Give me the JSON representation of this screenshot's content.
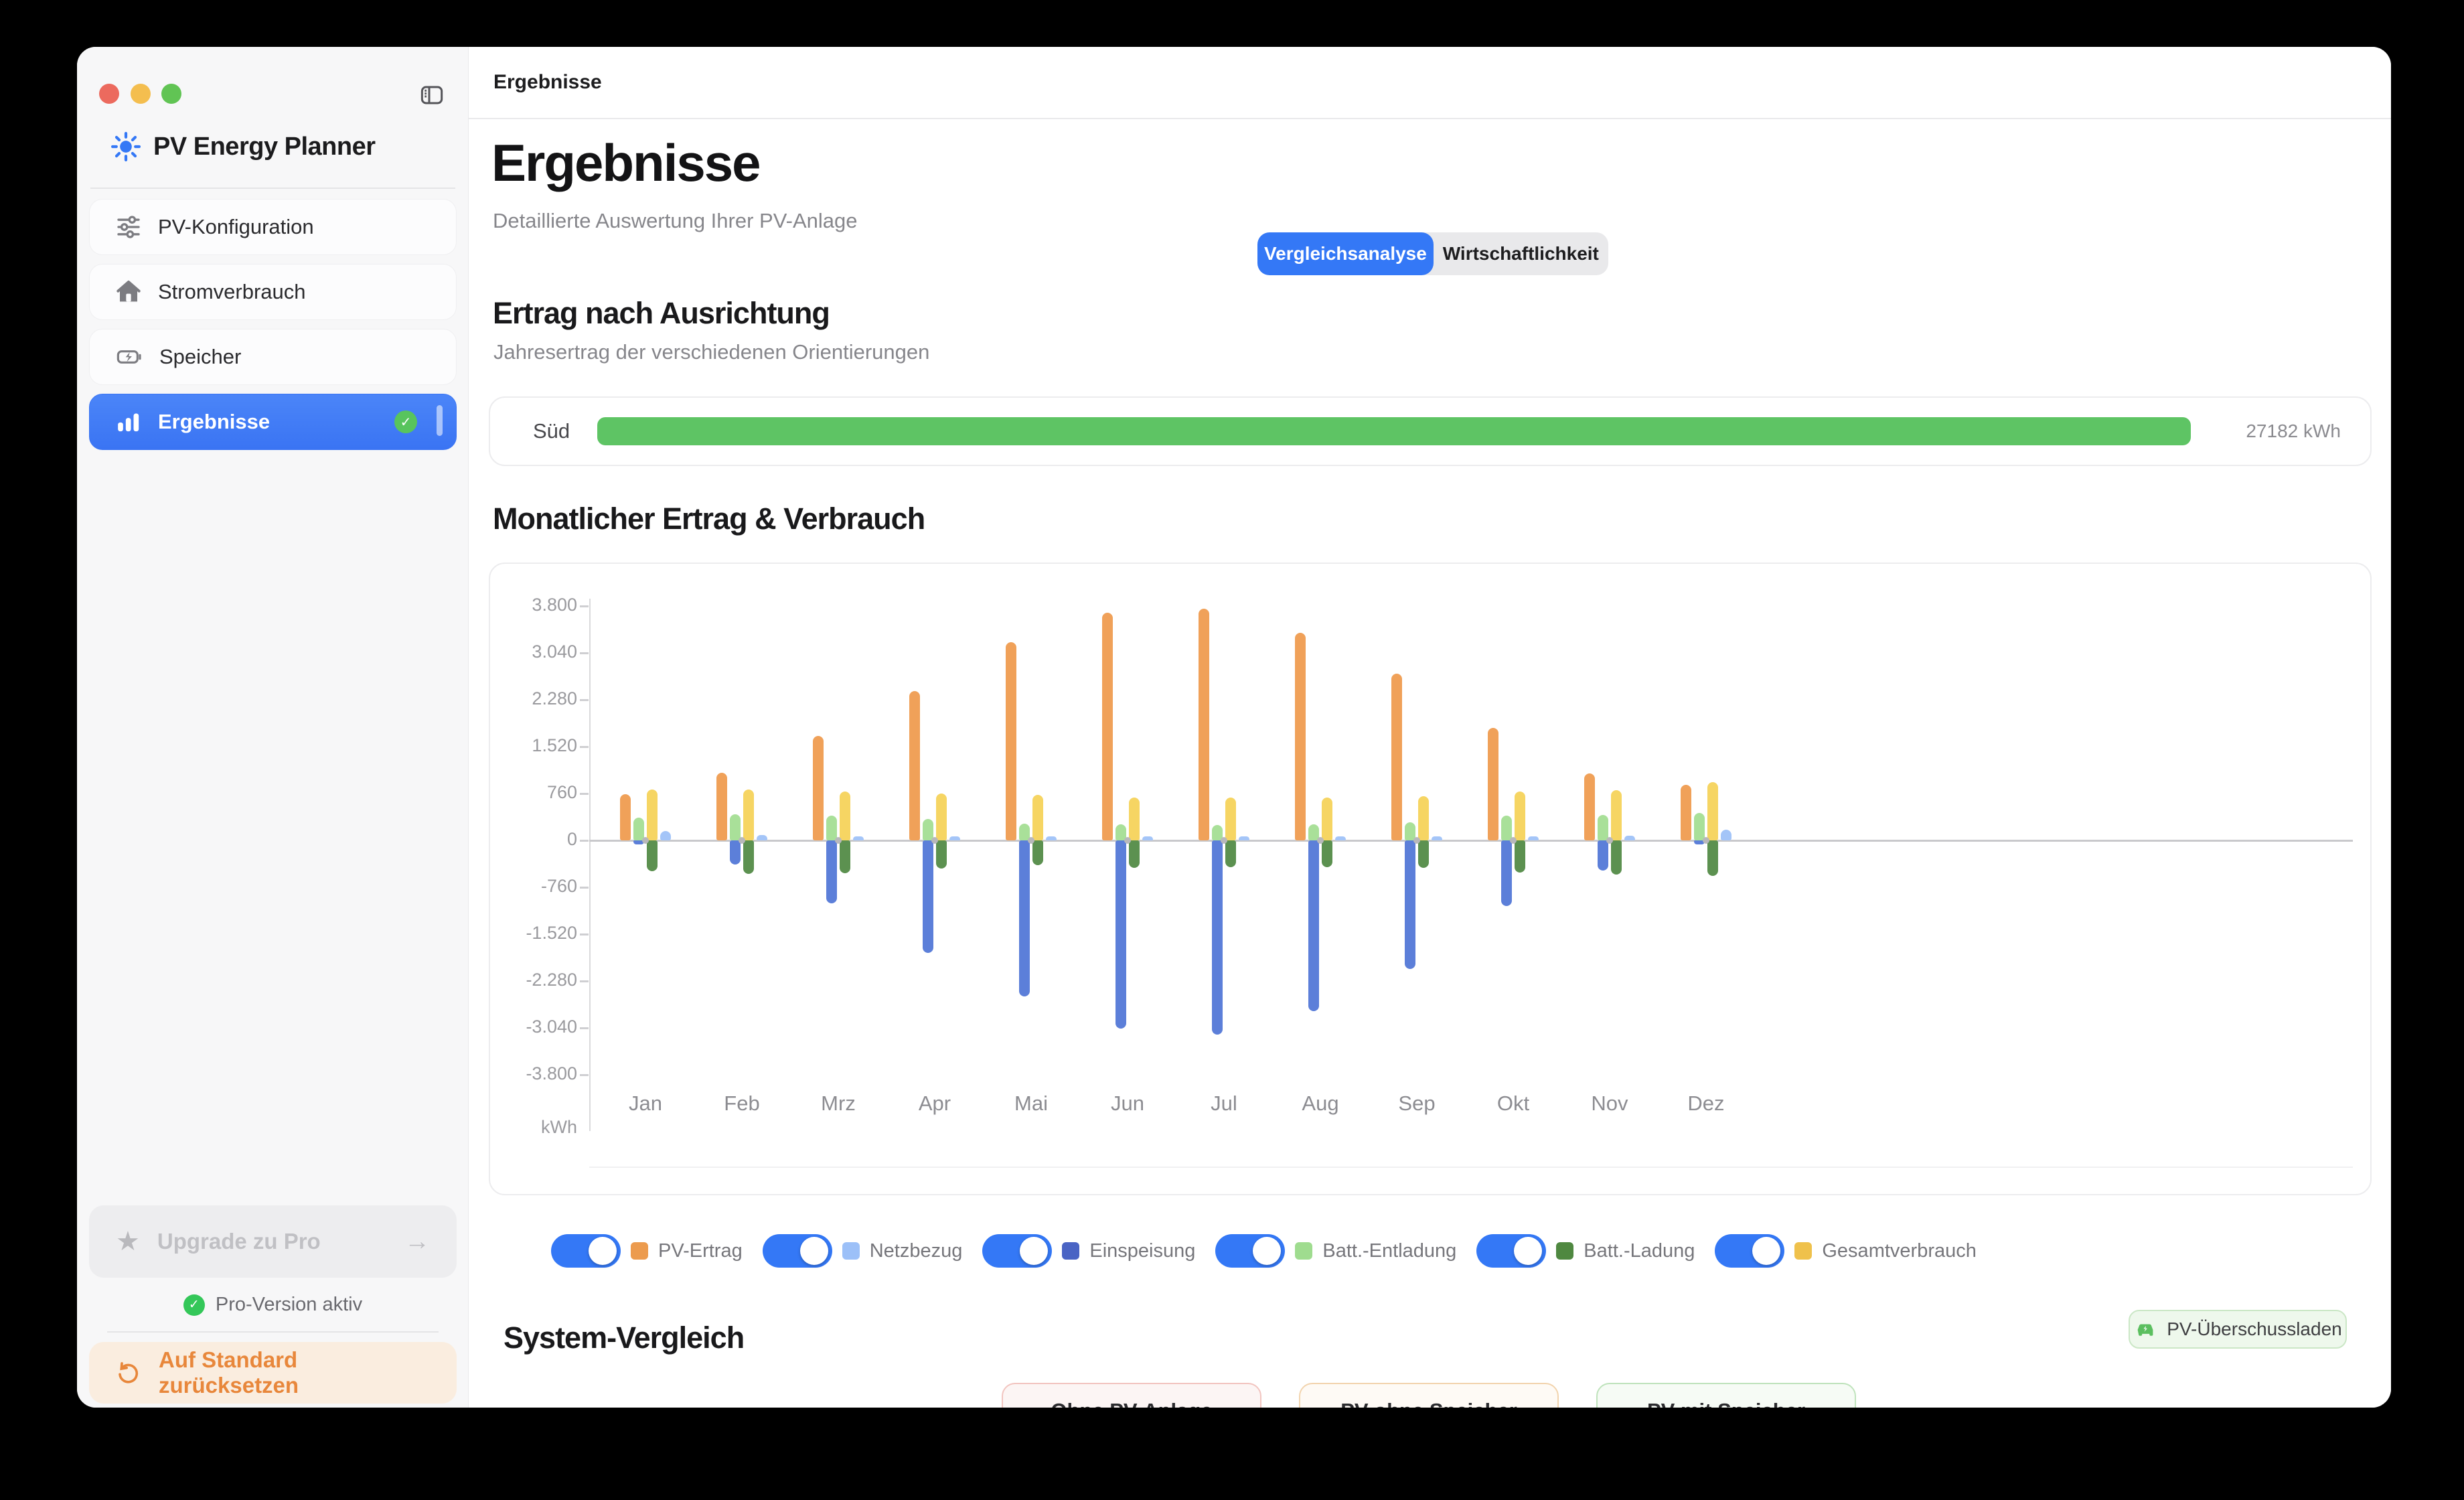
{
  "window": {
    "toolbar_title": "Ergebnisse"
  },
  "sidebar": {
    "app_title": "PV Energy Planner",
    "items": [
      {
        "label": "PV-Konfiguration",
        "icon": "sliders-icon"
      },
      {
        "label": "Stromverbrauch",
        "icon": "house-icon"
      },
      {
        "label": "Speicher",
        "icon": "battery-charging-icon"
      },
      {
        "label": "Ergebnisse",
        "icon": "bar-chart-icon",
        "selected": true
      }
    ],
    "upgrade_label": "Upgrade zu Pro",
    "pro_status": "Pro-Version aktiv",
    "reset_label": "Auf Standard zurücksetzen"
  },
  "header": {
    "title": "Ergebnisse",
    "subtitle": "Detaillierte Auswertung Ihrer PV-Anlage",
    "tabs": [
      {
        "label": "Vergleichsanalyse",
        "active": true
      },
      {
        "label": "Wirtschaftlichkeit",
        "active": false
      }
    ]
  },
  "orientation": {
    "title": "Ertrag nach Ausrichtung",
    "subtitle": "Jahresertrag der verschiedenen Orientierungen",
    "rows": [
      {
        "label": "Süd",
        "value_text": "27182 kWh",
        "value_kwh": 27182,
        "fraction": 0.99,
        "color": "#5EC464"
      }
    ]
  },
  "monthly_section": {
    "title": "Monatlicher Ertrag & Verbrauch"
  },
  "chart_data": {
    "type": "bar",
    "title": "Monatlicher Ertrag & Verbrauch",
    "xlabel": "",
    "ylabel": "kWh",
    "ylim": [
      -3800,
      3800
    ],
    "grid": false,
    "legend_position": "bottom-toggles",
    "categories": [
      "Jan",
      "Feb",
      "Mrz",
      "Apr",
      "Mai",
      "Jun",
      "Jul",
      "Aug",
      "Sep",
      "Okt",
      "Nov",
      "Dez"
    ],
    "yticks": [
      3800,
      3040,
      2280,
      1520,
      760,
      0,
      -760,
      -1520,
      -2280,
      -3040,
      -3800
    ],
    "ytick_labels": [
      "3.800",
      "3.040",
      "2.280",
      "1.520",
      "760",
      "0",
      "-760",
      "-1.520",
      "-2.280",
      "-3.040",
      "-3.800"
    ],
    "series": [
      {
        "name": "PV-Ertrag",
        "color": "#F0A159",
        "values": [
          750,
          1100,
          1690,
          2420,
          3210,
          3690,
          3760,
          3370,
          2700,
          1820,
          1090,
          900
        ]
      },
      {
        "name": "Netzbezug",
        "color": "#A4C5F8",
        "values": [
          150,
          90,
          45,
          25,
          20,
          25,
          20,
          15,
          20,
          55,
          80,
          170
        ]
      },
      {
        "name": "Einspeisung",
        "color": "#5C7FD9",
        "values": [
          -70,
          -390,
          -1020,
          -1820,
          -2530,
          -3050,
          -3150,
          -2770,
          -2080,
          -1060,
          -490,
          -60
        ]
      },
      {
        "name": "Batt.-Entladung",
        "color": "#A9E099",
        "values": [
          370,
          420,
          400,
          350,
          270,
          260,
          250,
          260,
          290,
          400,
          410,
          450
        ]
      },
      {
        "name": "Batt.-Ladung",
        "color": "#5C9150",
        "values": [
          -500,
          -545,
          -535,
          -460,
          -400,
          -450,
          -430,
          -430,
          -450,
          -520,
          -555,
          -575
        ]
      },
      {
        "name": "Gesamtverbrauch",
        "color": "#F6D563",
        "values": [
          820,
          825,
          790,
          760,
          740,
          700,
          700,
          700,
          720,
          790,
          815,
          950
        ]
      }
    ]
  },
  "legend": {
    "items": [
      {
        "label": "PV-Ertrag",
        "swatch": "#EC9B4E",
        "on": true
      },
      {
        "label": "Netzbezug",
        "swatch": "#9CC0F8",
        "on": true
      },
      {
        "label": "Einspeisung",
        "swatch": "#4A64C4",
        "on": true
      },
      {
        "label": "Batt.-Entladung",
        "swatch": "#9FDC8F",
        "on": true
      },
      {
        "label": "Batt.-Ladung",
        "swatch": "#4F8840",
        "on": true
      },
      {
        "label": "Gesamtverbrauch",
        "swatch": "#EFC14B",
        "on": true
      }
    ]
  },
  "comparison": {
    "title": "System-Vergleich",
    "badge_label": "PV-Überschussladen",
    "cards": [
      {
        "title": "Ohne PV-Anlage",
        "border": "#F2C5C0",
        "bg": "#FCF5F4"
      },
      {
        "title": "PV ohne Speicher",
        "border": "#F2D4AE",
        "bg": "#FEFAF5"
      },
      {
        "title": "PV mit Speicher",
        "border": "#BFE3BC",
        "bg": "#F6FBF5"
      }
    ]
  },
  "colors": {
    "accent_blue": "#3478F6",
    "orientation_green": "#5EC464",
    "pro_check_green": "#34C759",
    "reset_orange": "#E8873B"
  }
}
